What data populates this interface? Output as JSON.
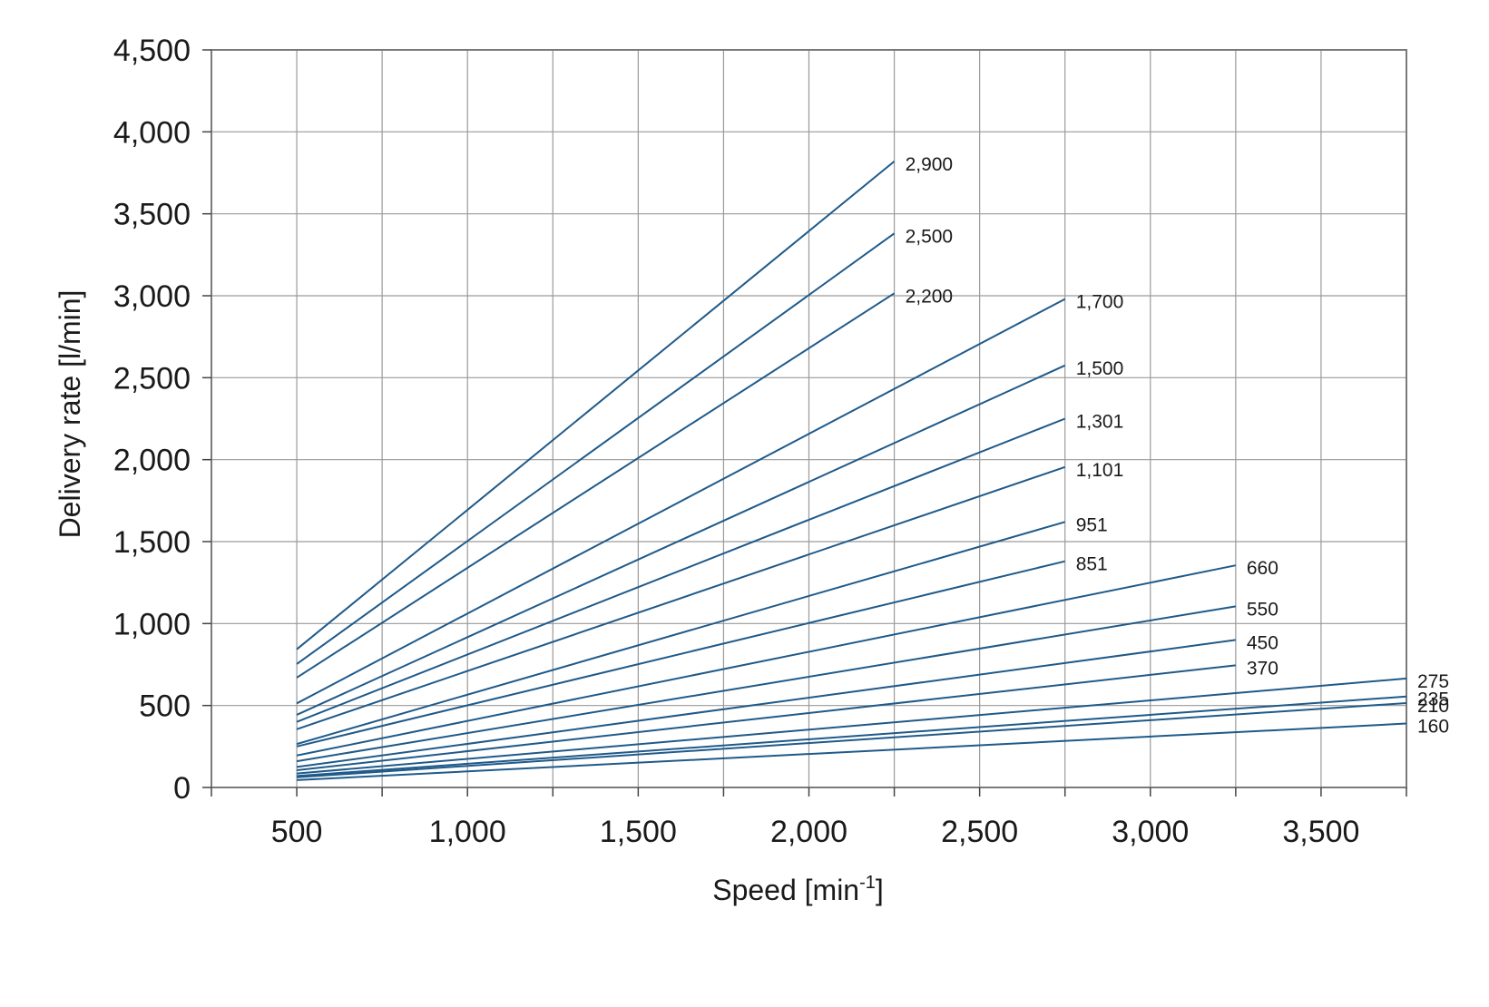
{
  "chart_data": {
    "type": "line",
    "xlabel": "Speed [min",
    "xlabel_superscript": "-1",
    "xlabel_suffix": "]",
    "ylabel": "Delivery rate [l/min]",
    "xlim": [
      250,
      3750
    ],
    "ylim": [
      0,
      4500
    ],
    "x_ticks": [
      500,
      1000,
      1500,
      2000,
      2500,
      3000,
      3500
    ],
    "x_tick_labels": [
      "500",
      "1,000",
      "1,500",
      "2,000",
      "2,500",
      "3,000",
      "3,500"
    ],
    "y_ticks": [
      0,
      500,
      1000,
      1500,
      2000,
      2500,
      3000,
      3500,
      4000,
      4500
    ],
    "y_tick_labels": [
      "0",
      "500",
      "1,000",
      "1,500",
      "2,000",
      "2,500",
      "3,000",
      "3,500",
      "4,000",
      "4,500"
    ],
    "grid": true,
    "line_color": "#1f5a8a",
    "series": [
      {
        "name": "2,900",
        "x": [
          500,
          2250
        ],
        "y": [
          843,
          3820
        ]
      },
      {
        "name": "2,500",
        "x": [
          500,
          2250
        ],
        "y": [
          753,
          3380
        ]
      },
      {
        "name": "2,200",
        "x": [
          500,
          2250
        ],
        "y": [
          670,
          3015
        ]
      },
      {
        "name": "1,700",
        "x": [
          500,
          2750
        ],
        "y": [
          513,
          2980
        ]
      },
      {
        "name": "1,500",
        "x": [
          500,
          2750
        ],
        "y": [
          443,
          2575
        ]
      },
      {
        "name": "1,301",
        "x": [
          500,
          2750
        ],
        "y": [
          400,
          2250
        ]
      },
      {
        "name": "1,101",
        "x": [
          500,
          2750
        ],
        "y": [
          355,
          1955
        ]
      },
      {
        "name": "951",
        "x": [
          500,
          2750
        ],
        "y": [
          265,
          1620
        ]
      },
      {
        "name": "851",
        "x": [
          500,
          2750
        ],
        "y": [
          250,
          1380
        ]
      },
      {
        "name": "660",
        "x": [
          500,
          3250
        ],
        "y": [
          195,
          1355
        ]
      },
      {
        "name": "550",
        "x": [
          500,
          3250
        ],
        "y": [
          160,
          1105
        ]
      },
      {
        "name": "450",
        "x": [
          500,
          3250
        ],
        "y": [
          125,
          900
        ]
      },
      {
        "name": "370",
        "x": [
          500,
          3250
        ],
        "y": [
          105,
          745
        ]
      },
      {
        "name": "275",
        "x": [
          500,
          3750
        ],
        "y": [
          85,
          665
        ]
      },
      {
        "name": "235",
        "x": [
          500,
          3750
        ],
        "y": [
          70,
          555
        ]
      },
      {
        "name": "210",
        "x": [
          500,
          3750
        ],
        "y": [
          62,
          515
        ]
      },
      {
        "name": "160",
        "x": [
          500,
          3750
        ],
        "y": [
          45,
          390
        ]
      }
    ]
  }
}
